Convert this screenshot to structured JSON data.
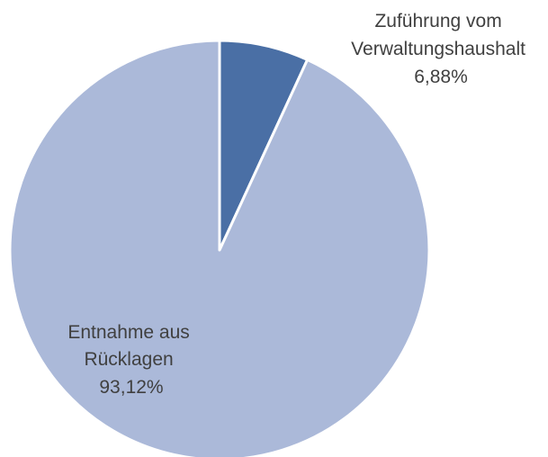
{
  "chart_data": {
    "type": "pie",
    "title": "",
    "slices": [
      {
        "label_lines": [
          "Zuführung vom",
          "Verwaltungshaushalt"
        ],
        "value": 6.88,
        "value_label": "6,88%",
        "color": "#4a6fa5"
      },
      {
        "label_lines": [
          "Entnahme aus",
          "Rücklagen"
        ],
        "value": 93.12,
        "value_label": "93,12%",
        "color": "#abb9d9"
      }
    ],
    "start_angle": "12 o'clock",
    "direction": "clockwise",
    "legend": "none",
    "slice_border_color": "#ffffff"
  }
}
